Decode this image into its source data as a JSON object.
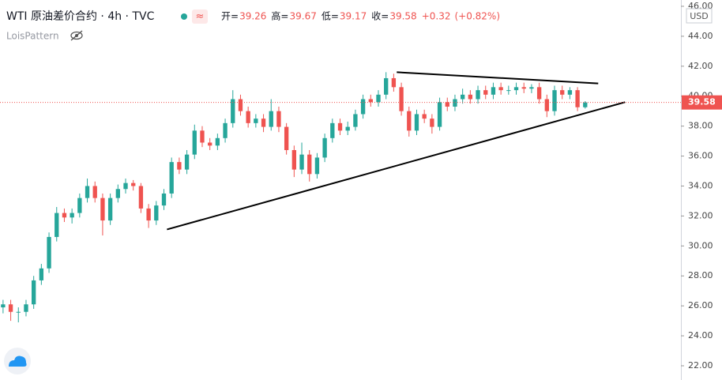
{
  "chart_data": {
    "type": "candlestick",
    "title": "WTI 原油差价合约 · 4h · TVC",
    "indicator": "LoisPattern",
    "currency": "USD",
    "legend": [
      {
        "label": "开=",
        "value": 39.26
      },
      {
        "label": "高=",
        "value": 39.67
      },
      {
        "label": "低=",
        "value": 39.17
      },
      {
        "label": "收=",
        "value": 39.58
      }
    ],
    "change": "+0.32",
    "change_pct": "(+0.82%)",
    "last_price": 39.58,
    "up_color": "#26a69a",
    "down_color": "#ef5350",
    "xlim": [
      -0.4,
      88.5
    ],
    "ylim": [
      21.05,
      46.42
    ],
    "yticks": [
      {
        "value": 22,
        "label": "22.00"
      },
      {
        "value": 24,
        "label": "24.00"
      },
      {
        "value": 26,
        "label": "26.00"
      },
      {
        "value": 28,
        "label": "28.00"
      },
      {
        "value": 30,
        "label": "30.00"
      },
      {
        "value": 32,
        "label": "32.00"
      },
      {
        "value": 34,
        "label": "34.00"
      },
      {
        "value": 36,
        "label": "36.00"
      },
      {
        "value": 38,
        "label": "38.00"
      },
      {
        "value": 40,
        "label": "40.00"
      },
      {
        "value": 42,
        "label": "42.00"
      },
      {
        "value": 44,
        "label": "44.00"
      },
      {
        "value": 46,
        "label": "46.00"
      }
    ],
    "open": [
      25.9,
      26.1,
      25.6,
      25.6,
      26.1,
      27.7,
      28.5,
      30.6,
      32.2,
      31.9,
      32.2,
      33.2,
      34.0,
      33.2,
      31.7,
      33.2,
      33.8,
      34.2,
      34.0,
      32.5,
      31.7,
      32.7,
      33.5,
      35.6,
      35.1,
      36.1,
      37.7,
      36.9,
      36.7,
      37.2,
      38.2,
      39.8,
      39.0,
      38.2,
      38.5,
      37.95,
      39.0,
      37.95,
      36.4,
      35.1,
      36.1,
      34.8,
      35.9,
      37.2,
      38.2,
      37.7,
      37.95,
      38.8,
      39.8,
      39.6,
      40.1,
      41.2,
      40.6,
      39.0,
      37.7,
      38.8,
      38.5,
      37.95,
      39.6,
      39.3,
      39.8,
      40.1,
      39.8,
      40.4,
      40.1,
      40.6,
      40.4,
      40.4,
      40.6,
      40.5,
      40.6,
      39.8,
      39.0,
      40.4,
      40.1,
      40.4,
      39.26
    ],
    "high": [
      26.4,
      26.4,
      25.9,
      26.4,
      28.0,
      28.8,
      30.9,
      32.6,
      32.5,
      32.5,
      33.5,
      34.5,
      34.3,
      33.5,
      33.5,
      34.1,
      34.5,
      34.4,
      34.2,
      32.8,
      33.0,
      33.8,
      35.9,
      35.9,
      36.4,
      38.1,
      38.0,
      37.2,
      37.5,
      38.5,
      40.4,
      40.1,
      39.3,
      38.8,
      38.8,
      39.8,
      39.3,
      38.2,
      36.7,
      36.9,
      36.4,
      36.2,
      37.5,
      38.5,
      38.5,
      38.3,
      39.1,
      40.1,
      40.1,
      40.4,
      41.6,
      41.5,
      40.9,
      39.3,
      39.1,
      39.1,
      38.8,
      39.9,
      39.9,
      40.1,
      40.5,
      40.4,
      40.7,
      40.7,
      40.9,
      40.9,
      40.7,
      40.9,
      40.9,
      40.8,
      40.9,
      40.1,
      40.7,
      40.7,
      40.6,
      40.6,
      39.67
    ],
    "low": [
      25.5,
      25.0,
      24.9,
      25.3,
      25.8,
      27.4,
      28.2,
      30.3,
      31.6,
      31.5,
      31.9,
      32.9,
      32.9,
      30.7,
      31.4,
      32.9,
      33.5,
      33.7,
      32.2,
      31.2,
      31.4,
      32.4,
      33.2,
      34.8,
      34.8,
      35.8,
      36.6,
      36.4,
      36.4,
      36.9,
      37.9,
      38.7,
      37.9,
      37.9,
      37.6,
      37.7,
      37.6,
      36.1,
      34.6,
      34.8,
      34.3,
      34.5,
      35.6,
      36.9,
      37.4,
      37.4,
      37.7,
      38.5,
      39.3,
      39.3,
      39.8,
      40.3,
      38.7,
      37.3,
      37.4,
      38.2,
      37.5,
      37.7,
      39.0,
      39.0,
      39.5,
      39.5,
      39.5,
      39.8,
      39.8,
      40.1,
      40.1,
      40.1,
      40.2,
      40.2,
      39.5,
      38.6,
      38.7,
      39.8,
      39.8,
      39.0,
      39.17
    ],
    "close": [
      26.1,
      25.6,
      25.6,
      26.1,
      27.7,
      28.5,
      30.6,
      32.2,
      31.9,
      32.2,
      33.2,
      34.0,
      33.2,
      31.7,
      33.2,
      33.8,
      34.2,
      34.0,
      32.5,
      31.7,
      32.7,
      33.5,
      35.6,
      35.1,
      36.1,
      37.7,
      36.9,
      36.7,
      37.2,
      38.2,
      39.8,
      39.0,
      38.2,
      38.5,
      37.95,
      39.0,
      37.95,
      36.4,
      35.1,
      36.1,
      34.8,
      35.9,
      37.2,
      38.2,
      37.7,
      37.95,
      38.8,
      39.8,
      39.6,
      40.1,
      41.2,
      40.6,
      39.0,
      37.7,
      38.8,
      38.5,
      37.95,
      39.6,
      39.3,
      39.8,
      40.1,
      39.8,
      40.4,
      40.1,
      40.6,
      40.4,
      40.4,
      40.6,
      40.5,
      40.6,
      39.8,
      39.0,
      40.4,
      40.1,
      40.4,
      39.26,
      39.58
    ],
    "trendlines": [
      {
        "x": [
          21.4,
          81.2
        ],
        "y": [
          31.1,
          39.6
        ]
      },
      {
        "x": [
          51.4,
          77.7
        ],
        "y": [
          41.6,
          40.85
        ]
      }
    ]
  }
}
